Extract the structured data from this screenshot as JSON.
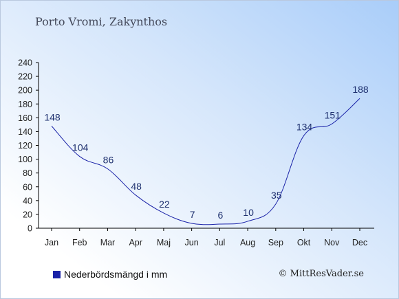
{
  "chart_data": {
    "type": "line",
    "title": "Porto Vromi, Zakynthos",
    "categories": [
      "Jan",
      "Feb",
      "Mar",
      "Apr",
      "Maj",
      "Jun",
      "Jul",
      "Aug",
      "Sep",
      "Okt",
      "Nov",
      "Dec"
    ],
    "series": [
      {
        "name": "Nederbördsmängd i mm",
        "values": [
          148,
          104,
          86,
          48,
          22,
          7,
          6,
          10,
          35,
          134,
          151,
          188
        ],
        "color": "#1a22a8"
      }
    ],
    "yticks": [
      0,
      20,
      40,
      60,
      80,
      100,
      120,
      140,
      160,
      180,
      200,
      220,
      240
    ],
    "ylim": [
      0,
      240
    ],
    "grid": false,
    "legend_position": "bottom-left"
  },
  "copyright": "© MittResVader.se",
  "colors": {
    "line": "#1a22a8",
    "axis": "#000000",
    "label": "#1d2f6e"
  }
}
